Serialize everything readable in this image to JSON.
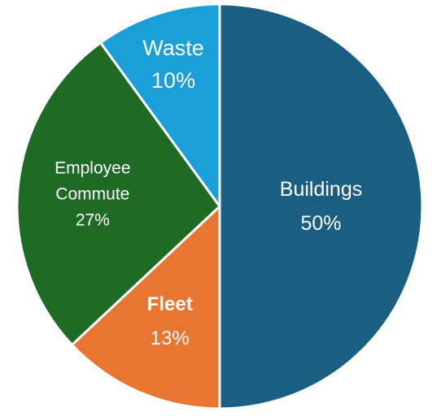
{
  "chart_data": {
    "type": "pie",
    "start": "12 o'clock",
    "direction": "clockwise",
    "slices": [
      {
        "label": "Buildings",
        "value": 50,
        "value_label": "50%",
        "color": "#1a5e83",
        "bold": false
      },
      {
        "label": "Fleet",
        "value": 13,
        "value_label": "13%",
        "color": "#e97532",
        "bold": true
      },
      {
        "label": "Employee Commute",
        "value": 27,
        "value_label": "27%",
        "color": "#1e6b26",
        "bold": false
      },
      {
        "label": "Waste",
        "value": 10,
        "value_label": "10%",
        "color": "#1a9fd8",
        "bold": false
      }
    ]
  }
}
